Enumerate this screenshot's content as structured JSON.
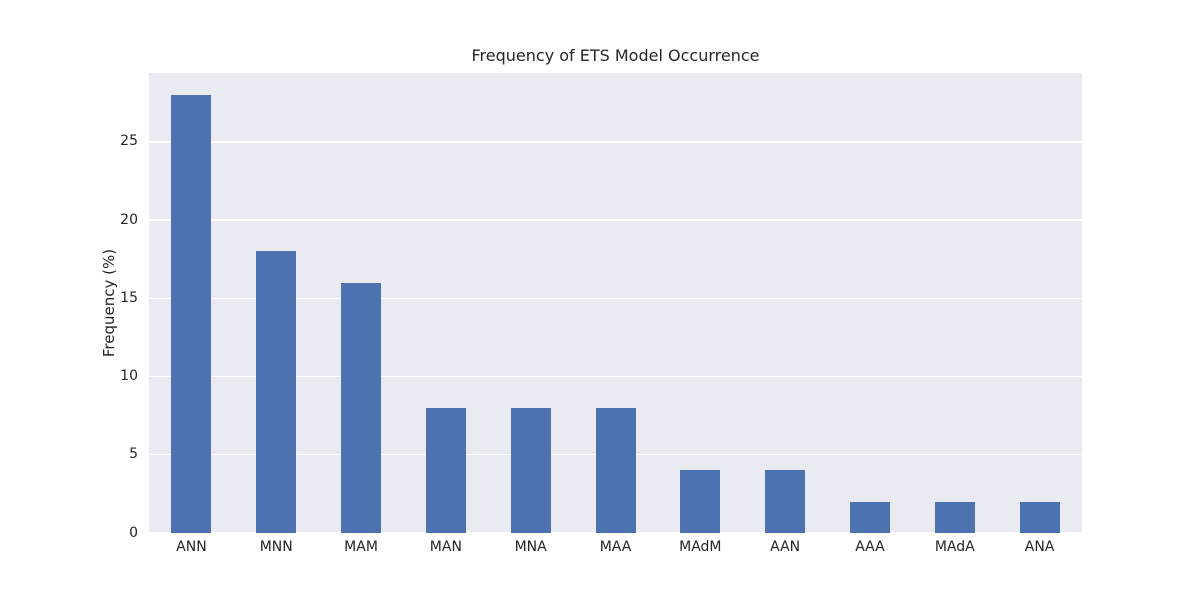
{
  "chart_data": {
    "type": "bar",
    "title": "Frequency of ETS Model Occurrence",
    "xlabel": "",
    "ylabel": "Frequency (%)",
    "categories": [
      "ANN",
      "MNN",
      "MAM",
      "MAN",
      "MNA",
      "MAA",
      "MAdM",
      "AAN",
      "AAA",
      "MAdA",
      "ANA"
    ],
    "values": [
      28,
      18,
      16,
      8,
      8,
      8,
      4,
      4,
      2,
      2,
      2
    ],
    "yticks": [
      0,
      5,
      10,
      15,
      20,
      25
    ],
    "ylim": [
      0,
      29.4
    ],
    "grid": true,
    "legend": false,
    "style": "seaborn-darkgrid",
    "colors": {
      "bar": "#4c72b0",
      "plot_background": "#eaeaf2",
      "figure_background": "#ffffff",
      "grid_line": "#ffffff",
      "text": "#262626"
    }
  }
}
